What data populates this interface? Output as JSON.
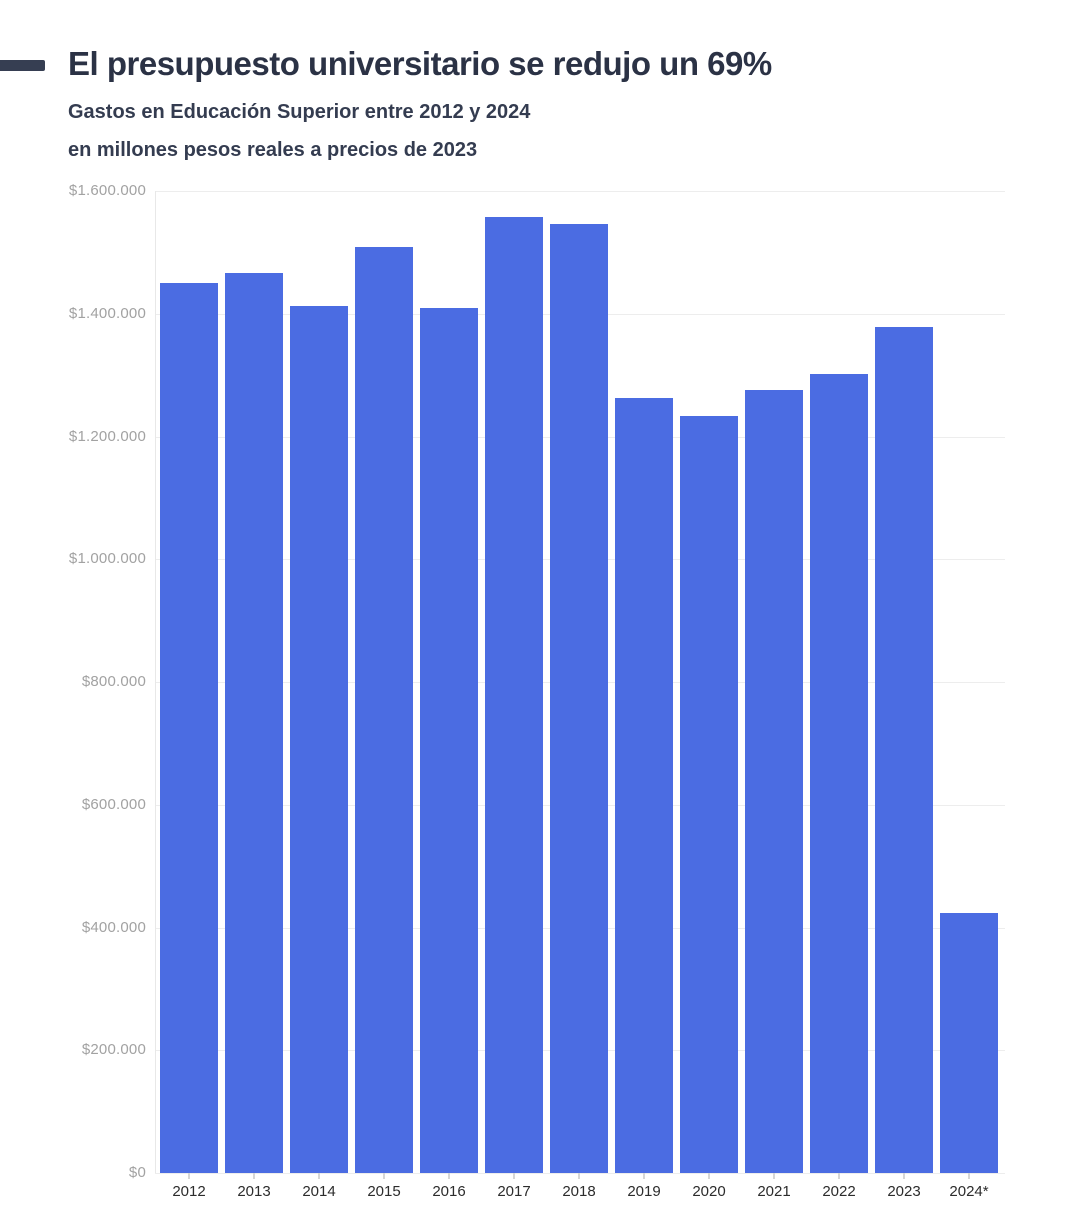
{
  "header": {
    "title": "El presupuesto universitario se redujo un 69%",
    "subtitle_line1": "Gastos en Educación Superior entre 2012 y 2024",
    "subtitle_line2": "en millones pesos reales a precios de 2023"
  },
  "colors": {
    "bar": "#4b6ce2",
    "title_text": "#2b3245",
    "subtitle_text": "#343c50",
    "title_dash": "#363e52",
    "gridline": "#ededed",
    "axis_line": "#e8e8e8",
    "y_tick_label": "#a2a2a2",
    "x_tick_label": "#2c2c2c",
    "background": "#ffffff"
  },
  "chart_data": {
    "type": "bar",
    "title": "El presupuesto universitario se redujo un 69%",
    "subtitle": "Gastos en Educación Superior entre 2012 y 2024 en millones pesos reales a precios de 2023",
    "categories": [
      "2012",
      "2013",
      "2014",
      "2015",
      "2016",
      "2017",
      "2018",
      "2019",
      "2020",
      "2021",
      "2022",
      "2023",
      "2024*"
    ],
    "values": [
      1450000,
      1467000,
      1413000,
      1508000,
      1409000,
      1558000,
      1546000,
      1262000,
      1233000,
      1275000,
      1302000,
      1379000,
      423000
    ],
    "xlabel": "",
    "ylabel": "",
    "ylim": [
      0,
      1600000
    ],
    "y_ticks": [
      0,
      200000,
      400000,
      600000,
      800000,
      1000000,
      1200000,
      1400000,
      1600000
    ],
    "y_tick_labels": [
      "$0",
      "$200.000",
      "$400.000",
      "$600.000",
      "$800.000",
      "$1.000.000",
      "$1.200.000",
      "$1.400.000",
      "$1.600.000"
    ],
    "grid": true,
    "legend": false,
    "bar_color": "#4b6ce2"
  }
}
